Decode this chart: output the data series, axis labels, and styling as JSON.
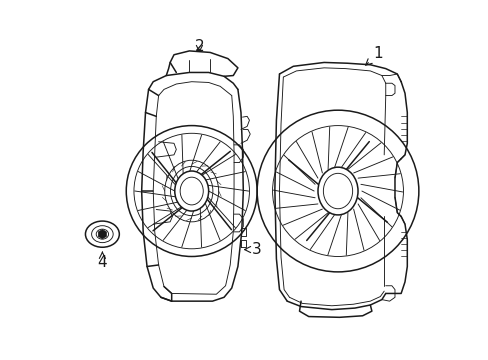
{
  "background_color": "#ffffff",
  "line_color": "#1a1a1a",
  "lw": 1.1,
  "tlw": 0.65,
  "figsize": [
    4.89,
    3.6
  ],
  "dpi": 100,
  "label_fontsize": 10
}
